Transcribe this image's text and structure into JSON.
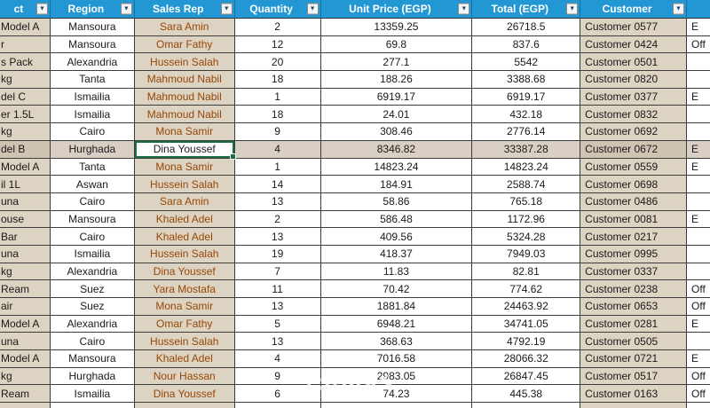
{
  "watermark": "خمسات",
  "colors": {
    "header_bg": "#2397D3",
    "grid_line": "#3C3C3C",
    "tan_cell_bg": "#DCD3C2",
    "highlight_white": "#DACFC5",
    "highlight_tan": "#CFC3B2",
    "selection_border": "#1A6E41",
    "rep_text": "#974706"
  },
  "table": {
    "columns": [
      {
        "key": "product",
        "label": "ct",
        "filter": true
      },
      {
        "key": "region",
        "label": "Region",
        "filter": true
      },
      {
        "key": "sales_rep",
        "label": "Sales Rep",
        "filter": true
      },
      {
        "key": "quantity",
        "label": "Quantity",
        "filter": true
      },
      {
        "key": "unit_price",
        "label": "Unit Price (EGP)",
        "filter": true
      },
      {
        "key": "total",
        "label": "Total (EGP)",
        "filter": true
      },
      {
        "key": "customer",
        "label": "Customer",
        "filter": true
      },
      {
        "key": "extra",
        "label": "",
        "filter": false
      }
    ],
    "selected_cell": {
      "row_index": 7,
      "column": "sales_rep",
      "value": "Dina Youssef"
    },
    "rows": [
      {
        "product": "Model A",
        "region": "Mansoura",
        "sales_rep": "Sara Amin",
        "quantity": "2",
        "unit_price": "13359.25",
        "total": "26718.5",
        "customer": "Customer 0577",
        "extra": "E"
      },
      {
        "product": "r",
        "region": "Mansoura",
        "sales_rep": "Omar Fathy",
        "quantity": "12",
        "unit_price": "69.8",
        "total": "837.6",
        "customer": "Customer 0424",
        "extra": "Off"
      },
      {
        "product": "s Pack",
        "region": "Alexandria",
        "sales_rep": "Hussein Salah",
        "quantity": "20",
        "unit_price": "277.1",
        "total": "5542",
        "customer": "Customer 0501",
        "extra": ""
      },
      {
        "product": "kg",
        "region": "Tanta",
        "sales_rep": "Mahmoud Nabil",
        "quantity": "18",
        "unit_price": "188.26",
        "total": "3388.68",
        "customer": "Customer 0820",
        "extra": ""
      },
      {
        "product": "del C",
        "region": "Ismailia",
        "sales_rep": "Mahmoud Nabil",
        "quantity": "1",
        "unit_price": "6919.17",
        "total": "6919.17",
        "customer": "Customer 0377",
        "extra": "E"
      },
      {
        "product": "er 1.5L",
        "region": "Ismailia",
        "sales_rep": "Mahmoud Nabil",
        "quantity": "18",
        "unit_price": "24.01",
        "total": "432.18",
        "customer": "Customer 0832",
        "extra": ""
      },
      {
        "product": "kg",
        "region": "Cairo",
        "sales_rep": "Mona Samir",
        "quantity": "9",
        "unit_price": "308.46",
        "total": "2776.14",
        "customer": "Customer 0692",
        "extra": ""
      },
      {
        "product": "del B",
        "region": "Hurghada",
        "sales_rep": "Dina Youssef",
        "quantity": "4",
        "unit_price": "8346.82",
        "total": "33387.28",
        "customer": "Customer 0672",
        "extra": "E",
        "highlighted": true
      },
      {
        "product": "Model A",
        "region": "Tanta",
        "sales_rep": "Mona Samir",
        "quantity": "1",
        "unit_price": "14823.24",
        "total": "14823.24",
        "customer": "Customer 0559",
        "extra": "E"
      },
      {
        "product": "il 1L",
        "region": "Aswan",
        "sales_rep": "Hussein Salah",
        "quantity": "14",
        "unit_price": "184.91",
        "total": "2588.74",
        "customer": "Customer 0698",
        "extra": ""
      },
      {
        "product": "una",
        "region": "Cairo",
        "sales_rep": "Sara Amin",
        "quantity": "13",
        "unit_price": "58.86",
        "total": "765.18",
        "customer": "Customer 0486",
        "extra": ""
      },
      {
        "product": "ouse",
        "region": "Mansoura",
        "sales_rep": "Khaled Adel",
        "quantity": "2",
        "unit_price": "586.48",
        "total": "1172.96",
        "customer": "Customer 0081",
        "extra": "E"
      },
      {
        "product": "Bar",
        "region": "Cairo",
        "sales_rep": "Khaled Adel",
        "quantity": "13",
        "unit_price": "409.56",
        "total": "5324.28",
        "customer": "Customer 0217",
        "extra": ""
      },
      {
        "product": "una",
        "region": "Ismailia",
        "sales_rep": "Hussein Salah",
        "quantity": "19",
        "unit_price": "418.37",
        "total": "7949.03",
        "customer": "Customer 0995",
        "extra": ""
      },
      {
        "product": "kg",
        "region": "Alexandria",
        "sales_rep": "Dina Youssef",
        "quantity": "7",
        "unit_price": "11.83",
        "total": "82.81",
        "customer": "Customer 0337",
        "extra": ""
      },
      {
        "product": "Ream",
        "region": "Suez",
        "sales_rep": "Yara Mostafa",
        "quantity": "11",
        "unit_price": "70.42",
        "total": "774.62",
        "customer": "Customer 0238",
        "extra": "Off"
      },
      {
        "product": "air",
        "region": "Suez",
        "sales_rep": "Mona Samir",
        "quantity": "13",
        "unit_price": "1881.84",
        "total": "24463.92",
        "customer": "Customer 0653",
        "extra": "Off"
      },
      {
        "product": "Model A",
        "region": "Alexandria",
        "sales_rep": "Omar Fathy",
        "quantity": "5",
        "unit_price": "6948.21",
        "total": "34741.05",
        "customer": "Customer 0281",
        "extra": "E"
      },
      {
        "product": "una",
        "region": "Cairo",
        "sales_rep": "Hussein Salah",
        "quantity": "13",
        "unit_price": "368.63",
        "total": "4792.19",
        "customer": "Customer 0505",
        "extra": ""
      },
      {
        "product": "Model A",
        "region": "Mansoura",
        "sales_rep": "Khaled Adel",
        "quantity": "4",
        "unit_price": "7016.58",
        "total": "28066.32",
        "customer": "Customer 0721",
        "extra": "E"
      },
      {
        "product": "kg",
        "region": "Hurghada",
        "sales_rep": "Nour Hassan",
        "quantity": "9",
        "unit_price": "2983.05",
        "total": "26847.45",
        "customer": "Customer 0517",
        "extra": "Off"
      },
      {
        "product": "Ream",
        "region": "Ismailia",
        "sales_rep": "Dina Youssef",
        "quantity": "6",
        "unit_price": "74.23",
        "total": "445.38",
        "customer": "Customer 0163",
        "extra": "Off"
      },
      {
        "product": "",
        "region": "",
        "sales_rep": "",
        "quantity": "",
        "unit_price": "",
        "total": "",
        "customer": "",
        "extra": "",
        "partial": true
      }
    ]
  }
}
